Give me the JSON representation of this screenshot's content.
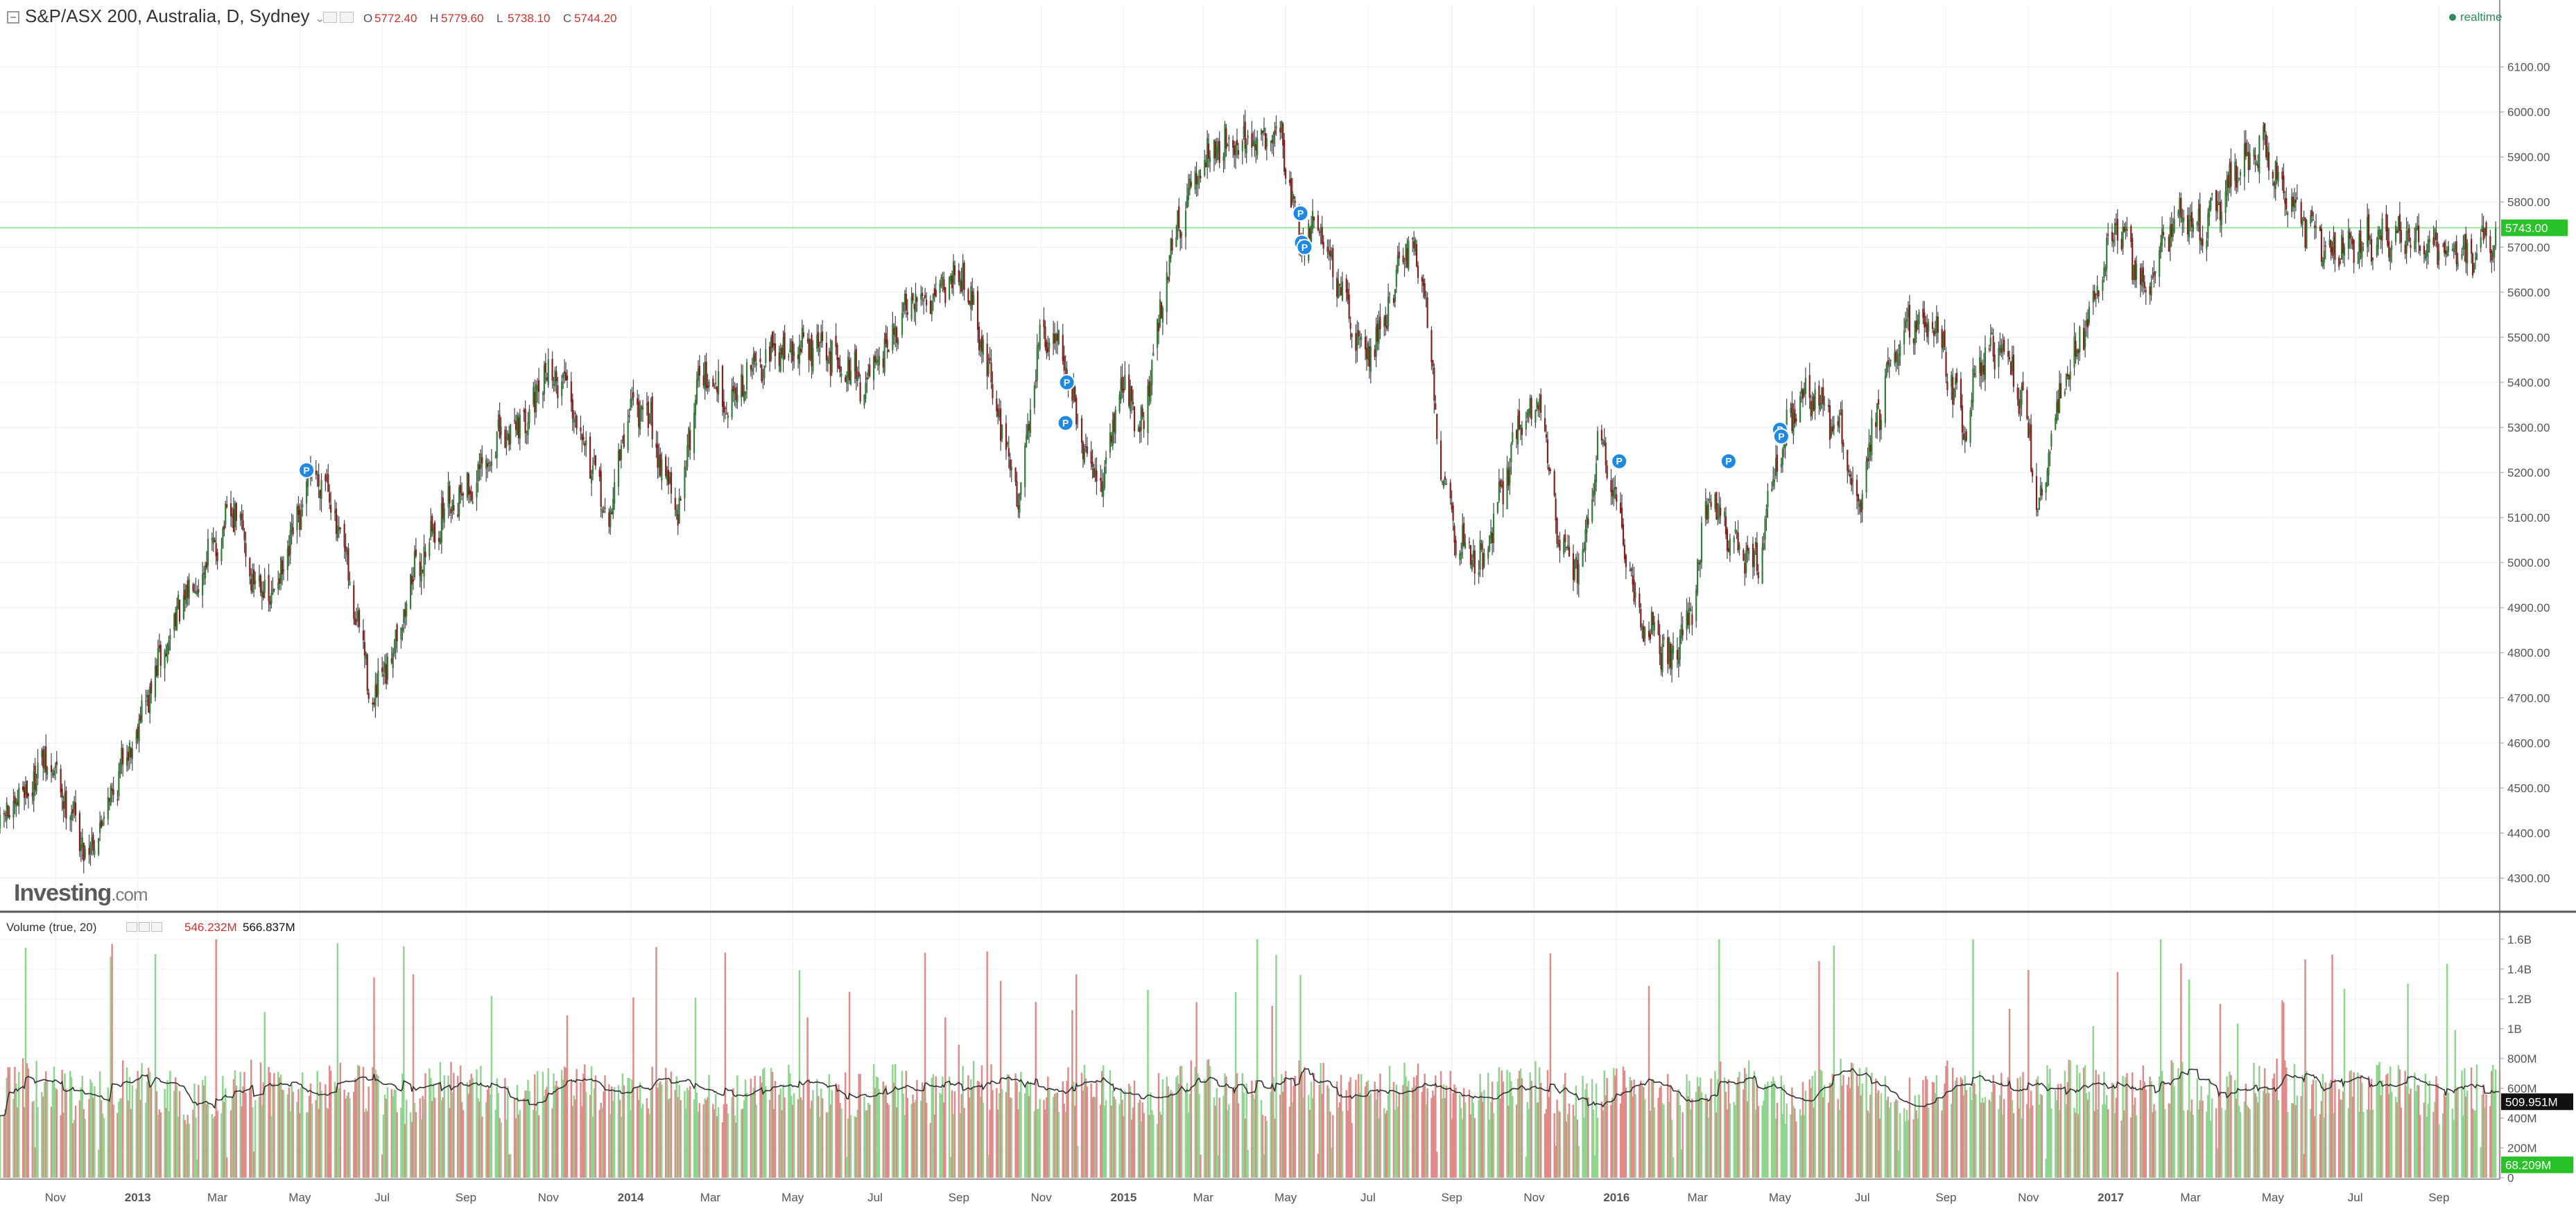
{
  "header": {
    "title": "S&P/ASX 200, Australia, D, Sydney",
    "collapse_caret": "⌄",
    "ohlc": [
      {
        "label": "O",
        "value": "5772.40"
      },
      {
        "label": "H",
        "value": "5779.60"
      },
      {
        "label": "L",
        "value": "5738.10"
      },
      {
        "label": "C",
        "value": "5744.20"
      }
    ],
    "realtime_label": "realtime"
  },
  "watermark": {
    "brand": "Investing",
    "suffix": ".com"
  },
  "volume_header": {
    "title": "Volume (true, 20)",
    "value_1": "546.232M",
    "value_2": "566.837M"
  },
  "colors": {
    "up": "#2e7d32",
    "down": "#8b1a1a",
    "wick": "#222222",
    "vol_up": "#8fd48f",
    "vol_down": "#e08a8a",
    "ma_line": "#333333",
    "price_line": "#9be59b",
    "price_tag": "#29c329",
    "pin": "#1e88e5"
  },
  "chart_data": [
    {
      "type": "candlestick",
      "title": "S&P/ASX 200, Australia, D, Sydney",
      "x_ticks": [
        {
          "label": "Nov",
          "date": "2012-11-01"
        },
        {
          "label": "2013",
          "date": "2013-01-01"
        },
        {
          "label": "Mar",
          "date": "2013-03-01"
        },
        {
          "label": "May",
          "date": "2013-05-01"
        },
        {
          "label": "Jul",
          "date": "2013-07-01"
        },
        {
          "label": "Sep",
          "date": "2013-09-01"
        },
        {
          "label": "Nov",
          "date": "2013-11-01"
        },
        {
          "label": "2014",
          "date": "2014-01-01"
        },
        {
          "label": "Mar",
          "date": "2014-03-01"
        },
        {
          "label": "May",
          "date": "2014-05-01"
        },
        {
          "label": "Jul",
          "date": "2014-07-01"
        },
        {
          "label": "Sep",
          "date": "2014-09-01"
        },
        {
          "label": "Nov",
          "date": "2014-11-01"
        },
        {
          "label": "2015",
          "date": "2015-01-01"
        },
        {
          "label": "Mar",
          "date": "2015-03-01"
        },
        {
          "label": "May",
          "date": "2015-05-01"
        },
        {
          "label": "Jul",
          "date": "2015-07-01"
        },
        {
          "label": "Sep",
          "date": "2015-09-01"
        },
        {
          "label": "Nov",
          "date": "2015-11-01"
        },
        {
          "label": "2016",
          "date": "2016-01-01"
        },
        {
          "label": "Mar",
          "date": "2016-03-01"
        },
        {
          "label": "May",
          "date": "2016-05-01"
        },
        {
          "label": "Jul",
          "date": "2016-07-01"
        },
        {
          "label": "Sep",
          "date": "2016-09-01"
        },
        {
          "label": "Nov",
          "date": "2016-11-01"
        },
        {
          "label": "2017",
          "date": "2017-01-01"
        },
        {
          "label": "Mar",
          "date": "2017-03-01"
        },
        {
          "label": "May",
          "date": "2017-05-01"
        },
        {
          "label": "Jul",
          "date": "2017-07-01"
        },
        {
          "label": "Sep",
          "date": "2017-09-01"
        }
      ],
      "x_range": [
        "2012-09-21",
        "2017-10-16"
      ],
      "y_ticks": [
        "6100.00",
        "6000.00",
        "5900.00",
        "5800.00",
        "5700.00",
        "5600.00",
        "5500.00",
        "5400.00",
        "5300.00",
        "5200.00",
        "5100.00",
        "5000.00",
        "4900.00",
        "4800.00",
        "4700.00",
        "4600.00",
        "4500.00",
        "4400.00",
        "4300.00"
      ],
      "ylim": [
        4250,
        6190
      ],
      "last_price": 5743.0,
      "last_price_label": "5743.00",
      "path_points": [
        {
          "date": "2012-09-21",
          "value": 4410
        },
        {
          "date": "2012-10-25",
          "value": 4560
        },
        {
          "date": "2012-11-10",
          "value": 4470
        },
        {
          "date": "2012-11-25",
          "value": 4350
        },
        {
          "date": "2012-12-10",
          "value": 4470
        },
        {
          "date": "2013-01-01",
          "value": 4640
        },
        {
          "date": "2013-02-01",
          "value": 4900
        },
        {
          "date": "2013-03-15",
          "value": 5120
        },
        {
          "date": "2013-03-25",
          "value": 4980
        },
        {
          "date": "2013-04-10",
          "value": 4920
        },
        {
          "date": "2013-04-25",
          "value": 5040
        },
        {
          "date": "2013-05-10",
          "value": 5200
        },
        {
          "date": "2013-05-20",
          "value": 5190
        },
        {
          "date": "2013-06-05",
          "value": 4980
        },
        {
          "date": "2013-06-25",
          "value": 4680
        },
        {
          "date": "2013-07-10",
          "value": 4820
        },
        {
          "date": "2013-07-25",
          "value": 4980
        },
        {
          "date": "2013-08-20",
          "value": 5140
        },
        {
          "date": "2013-09-10",
          "value": 5180
        },
        {
          "date": "2013-09-25",
          "value": 5270
        },
        {
          "date": "2013-10-20",
          "value": 5340
        },
        {
          "date": "2013-10-30",
          "value": 5420
        },
        {
          "date": "2013-11-15",
          "value": 5400
        },
        {
          "date": "2013-12-01",
          "value": 5240
        },
        {
          "date": "2013-12-15",
          "value": 5080
        },
        {
          "date": "2013-12-31",
          "value": 5352
        },
        {
          "date": "2014-01-15",
          "value": 5320
        },
        {
          "date": "2014-02-05",
          "value": 5100
        },
        {
          "date": "2014-02-20",
          "value": 5420
        },
        {
          "date": "2014-03-15",
          "value": 5360
        },
        {
          "date": "2014-04-10",
          "value": 5460
        },
        {
          "date": "2014-05-15",
          "value": 5480
        },
        {
          "date": "2014-06-10",
          "value": 5440
        },
        {
          "date": "2014-06-25",
          "value": 5390
        },
        {
          "date": "2014-07-25",
          "value": 5560
        },
        {
          "date": "2014-08-25",
          "value": 5630
        },
        {
          "date": "2014-09-05",
          "value": 5650
        },
        {
          "date": "2014-09-25",
          "value": 5400
        },
        {
          "date": "2014-10-15",
          "value": 5140
        },
        {
          "date": "2014-10-30",
          "value": 5480
        },
        {
          "date": "2014-11-15",
          "value": 5500
        },
        {
          "date": "2014-12-01",
          "value": 5250
        },
        {
          "date": "2014-12-15",
          "value": 5170
        },
        {
          "date": "2014-12-31",
          "value": 5400
        },
        {
          "date": "2015-01-15",
          "value": 5300
        },
        {
          "date": "2015-02-05",
          "value": 5700
        },
        {
          "date": "2015-03-02",
          "value": 5900
        },
        {
          "date": "2015-03-20",
          "value": 5940
        },
        {
          "date": "2015-04-10",
          "value": 5920
        },
        {
          "date": "2015-04-27",
          "value": 5960
        },
        {
          "date": "2015-05-12",
          "value": 5700
        },
        {
          "date": "2015-05-25",
          "value": 5760
        },
        {
          "date": "2015-06-10",
          "value": 5600
        },
        {
          "date": "2015-06-30",
          "value": 5460
        },
        {
          "date": "2015-07-10",
          "value": 5520
        },
        {
          "date": "2015-07-30",
          "value": 5700
        },
        {
          "date": "2015-08-10",
          "value": 5650
        },
        {
          "date": "2015-08-25",
          "value": 5200
        },
        {
          "date": "2015-09-05",
          "value": 5050
        },
        {
          "date": "2015-09-25",
          "value": 5000
        },
        {
          "date": "2015-10-20",
          "value": 5300
        },
        {
          "date": "2015-11-05",
          "value": 5350
        },
        {
          "date": "2015-11-20",
          "value": 5050
        },
        {
          "date": "2015-12-05",
          "value": 4980
        },
        {
          "date": "2015-12-20",
          "value": 5300
        },
        {
          "date": "2016-01-15",
          "value": 4900
        },
        {
          "date": "2016-02-10",
          "value": 4780
        },
        {
          "date": "2016-02-25",
          "value": 4880
        },
        {
          "date": "2016-03-10",
          "value": 5160
        },
        {
          "date": "2016-03-25",
          "value": 5050
        },
        {
          "date": "2016-04-15",
          "value": 5000
        },
        {
          "date": "2016-04-30",
          "value": 5250
        },
        {
          "date": "2016-05-20",
          "value": 5380
        },
        {
          "date": "2016-06-15",
          "value": 5300
        },
        {
          "date": "2016-06-27",
          "value": 5100
        },
        {
          "date": "2016-07-10",
          "value": 5300
        },
        {
          "date": "2016-08-01",
          "value": 5540
        },
        {
          "date": "2016-08-25",
          "value": 5520
        },
        {
          "date": "2016-09-15",
          "value": 5290
        },
        {
          "date": "2016-09-25",
          "value": 5440
        },
        {
          "date": "2016-10-15",
          "value": 5480
        },
        {
          "date": "2016-11-01",
          "value": 5300
        },
        {
          "date": "2016-11-09",
          "value": 5100
        },
        {
          "date": "2016-11-20",
          "value": 5320
        },
        {
          "date": "2016-12-15",
          "value": 5550
        },
        {
          "date": "2017-01-05",
          "value": 5760
        },
        {
          "date": "2017-01-25",
          "value": 5600
        },
        {
          "date": "2017-02-20",
          "value": 5780
        },
        {
          "date": "2017-03-10",
          "value": 5740
        },
        {
          "date": "2017-04-01",
          "value": 5860
        },
        {
          "date": "2017-04-25",
          "value": 5920
        },
        {
          "date": "2017-05-20",
          "value": 5760
        },
        {
          "date": "2017-06-10",
          "value": 5700
        },
        {
          "date": "2017-07-10",
          "value": 5720
        },
        {
          "date": "2017-08-10",
          "value": 5720
        },
        {
          "date": "2017-09-05",
          "value": 5690
        },
        {
          "date": "2017-09-25",
          "value": 5680
        },
        {
          "date": "2017-10-10",
          "value": 5720
        },
        {
          "date": "2017-10-16",
          "value": 5744
        }
      ],
      "markers": [
        {
          "label": "P",
          "date": "2013-05-06",
          "value": 5205
        },
        {
          "label": "P",
          "date": "2014-11-20",
          "value": 5400
        },
        {
          "label": "P",
          "date": "2014-11-19",
          "value": 5310
        },
        {
          "label": "P",
          "date": "2015-05-12",
          "value": 5775
        },
        {
          "label": "P",
          "date": "2015-05-13",
          "value": 5710
        },
        {
          "label": "P",
          "date": "2015-05-15",
          "value": 5700
        },
        {
          "label": "P",
          "date": "2016-01-03",
          "value": 5225
        },
        {
          "label": "P",
          "date": "2016-03-24",
          "value": 5225
        },
        {
          "label": "P",
          "date": "2016-05-01",
          "value": 5295
        },
        {
          "label": "P",
          "date": "2016-05-02",
          "value": 5280
        }
      ]
    },
    {
      "type": "bar",
      "title": "Volume (true, 20)",
      "y_ticks": [
        "1.6B",
        "1.4B",
        "1.2B",
        "1B",
        "800M",
        "600M",
        "400M",
        "200M",
        "0"
      ],
      "ylim": [
        0,
        1.65
      ],
      "y_unit": "B",
      "base_level": 0.58,
      "last_ma_label": "509.951M",
      "last_ma_value": 0.51,
      "last_volume_label": "68.209M",
      "last_volume_value": 0.068
    }
  ]
}
